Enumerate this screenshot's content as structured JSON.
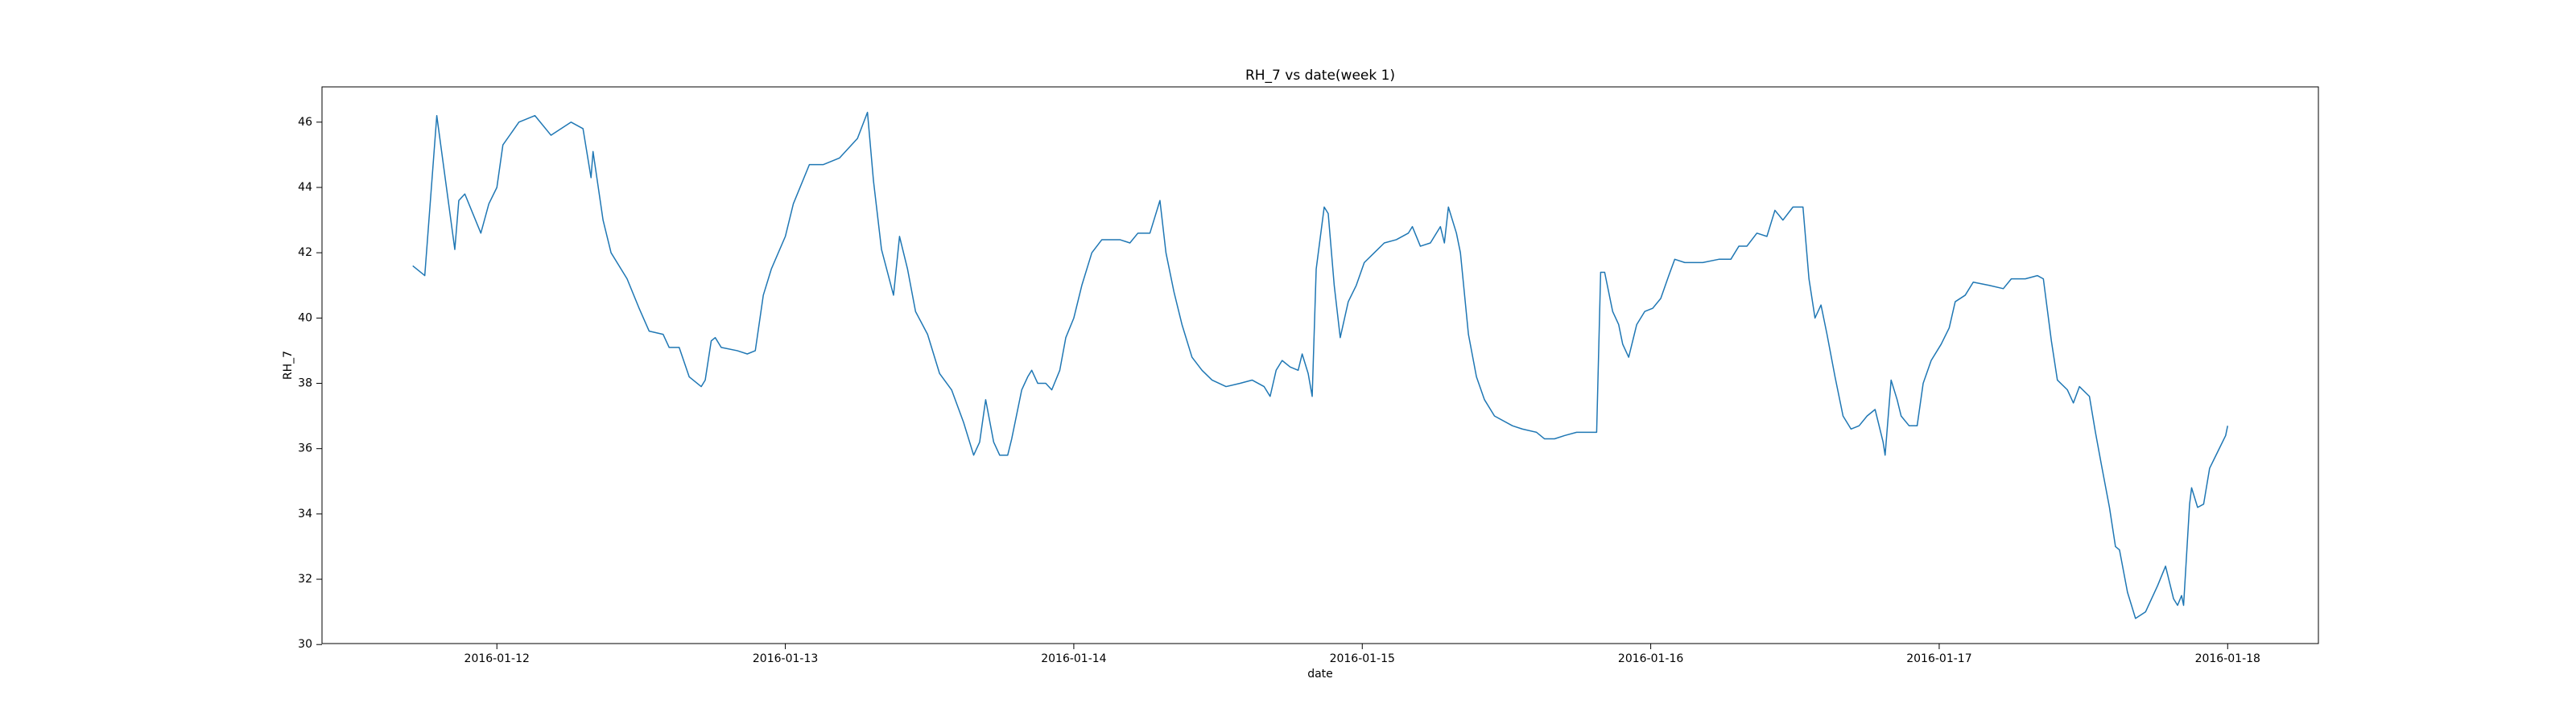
{
  "chart_data": {
    "type": "line",
    "title": "RH_7 vs date(week 1)",
    "x_label": "date",
    "y_label": "RH_7",
    "color": "#1f77b4",
    "grid": false,
    "xlim": [
      "2016-01-11 09:27",
      "2016-01-18 07:33"
    ],
    "xticks": [
      "2016-01-12",
      "2016-01-13",
      "2016-01-14",
      "2016-01-15",
      "2016-01-16",
      "2016-01-17",
      "2016-01-18"
    ],
    "ylim": [
      30.03,
      47.08
    ],
    "yticks": [
      30,
      32,
      34,
      36,
      38,
      40,
      42,
      44,
      46
    ],
    "x": [
      "2016-01-11 17:00",
      "2016-01-11 18:00",
      "2016-01-11 19:00",
      "2016-01-11 20:30",
      "2016-01-11 20:50",
      "2016-01-11 21:20",
      "2016-01-11 22:40",
      "2016-01-11 23:20",
      "2016-01-12 00:00",
      "2016-01-12 00:30",
      "2016-01-12 01:50",
      "2016-01-12 03:10",
      "2016-01-12 04:30",
      "2016-01-12 06:10",
      "2016-01-12 07:10",
      "2016-01-12 07:50",
      "2016-01-12 08:00",
      "2016-01-12 08:50",
      "2016-01-12 09:30",
      "2016-01-12 10:50",
      "2016-01-12 11:50",
      "2016-01-12 12:40",
      "2016-01-12 13:50",
      "2016-01-12 14:20",
      "2016-01-12 15:10",
      "2016-01-12 16:00",
      "2016-01-12 17:00",
      "2016-01-12 17:20",
      "2016-01-12 17:50",
      "2016-01-12 18:10",
      "2016-01-12 18:40",
      "2016-01-12 20:00",
      "2016-01-12 20:50",
      "2016-01-12 21:30",
      "2016-01-12 22:10",
      "2016-01-12 22:50",
      "2016-01-13 00:00",
      "2016-01-13 00:40",
      "2016-01-13 02:00",
      "2016-01-13 03:10",
      "2016-01-13 04:30",
      "2016-01-13 06:00",
      "2016-01-13 06:50",
      "2016-01-13 07:20",
      "2016-01-13 08:00",
      "2016-01-13 09:00",
      "2016-01-13 09:30",
      "2016-01-13 10:10",
      "2016-01-13 10:50",
      "2016-01-13 11:50",
      "2016-01-13 12:50",
      "2016-01-13 13:50",
      "2016-01-13 14:50",
      "2016-01-13 15:40",
      "2016-01-13 16:10",
      "2016-01-13 16:40",
      "2016-01-13 17:20",
      "2016-01-13 17:50",
      "2016-01-13 18:30",
      "2016-01-13 18:50",
      "2016-01-13 19:40",
      "2016-01-13 20:10",
      "2016-01-13 20:30",
      "2016-01-13 21:00",
      "2016-01-13 21:40",
      "2016-01-13 22:10",
      "2016-01-13 22:50",
      "2016-01-13 23:20",
      "2016-01-14 00:00",
      "2016-01-14 00:40",
      "2016-01-14 01:30",
      "2016-01-14 02:20",
      "2016-01-14 03:50",
      "2016-01-14 04:40",
      "2016-01-14 05:20",
      "2016-01-14 06:20",
      "2016-01-14 07:10",
      "2016-01-14 07:40",
      "2016-01-14 08:20",
      "2016-01-14 09:00",
      "2016-01-14 09:50",
      "2016-01-14 10:40",
      "2016-01-14 11:30",
      "2016-01-14 12:40",
      "2016-01-14 13:50",
      "2016-01-14 14:50",
      "2016-01-14 15:50",
      "2016-01-14 16:20",
      "2016-01-14 16:50",
      "2016-01-14 17:20",
      "2016-01-14 18:00",
      "2016-01-14 18:40",
      "2016-01-14 19:00",
      "2016-01-14 19:30",
      "2016-01-14 19:50",
      "2016-01-14 20:10",
      "2016-01-14 20:50",
      "2016-01-14 21:10",
      "2016-01-14 21:40",
      "2016-01-14 22:10",
      "2016-01-14 22:50",
      "2016-01-14 23:30",
      "2016-01-15 00:10",
      "2016-01-15 01:00",
      "2016-01-15 01:50",
      "2016-01-15 02:50",
      "2016-01-15 03:50",
      "2016-01-15 04:10",
      "2016-01-15 04:50",
      "2016-01-15 05:40",
      "2016-01-15 06:30",
      "2016-01-15 06:50",
      "2016-01-15 07:10",
      "2016-01-15 07:50",
      "2016-01-15 08:10",
      "2016-01-15 08:50",
      "2016-01-15 09:30",
      "2016-01-15 10:10",
      "2016-01-15 11:00",
      "2016-01-15 12:30",
      "2016-01-15 13:20",
      "2016-01-15 14:30",
      "2016-01-15 15:10",
      "2016-01-15 16:00",
      "2016-01-15 16:50",
      "2016-01-15 17:50",
      "2016-01-15 19:00",
      "2016-01-15 19:30",
      "2016-01-15 19:50",
      "2016-01-15 20:10",
      "2016-01-15 20:50",
      "2016-01-15 21:20",
      "2016-01-15 21:40",
      "2016-01-15 22:10",
      "2016-01-15 22:50",
      "2016-01-15 23:30",
      "2016-01-16 00:10",
      "2016-01-16 00:50",
      "2016-01-16 01:30",
      "2016-01-16 02:00",
      "2016-01-16 02:50",
      "2016-01-16 04:20",
      "2016-01-16 05:40",
      "2016-01-16 06:40",
      "2016-01-16 07:20",
      "2016-01-16 08:00",
      "2016-01-16 08:50",
      "2016-01-16 09:40",
      "2016-01-16 10:20",
      "2016-01-16 11:00",
      "2016-01-16 11:50",
      "2016-01-16 12:40",
      "2016-01-16 13:10",
      "2016-01-16 13:40",
      "2016-01-16 14:10",
      "2016-01-16 14:40",
      "2016-01-16 15:20",
      "2016-01-16 16:00",
      "2016-01-16 16:40",
      "2016-01-16 17:20",
      "2016-01-16 18:00",
      "2016-01-16 18:40",
      "2016-01-16 19:20",
      "2016-01-16 19:30",
      "2016-01-16 20:00",
      "2016-01-16 20:30",
      "2016-01-16 20:50",
      "2016-01-16 21:30",
      "2016-01-16 22:10",
      "2016-01-16 22:40",
      "2016-01-16 23:20",
      "2016-01-17 00:10",
      "2016-01-17 00:50",
      "2016-01-17 01:20",
      "2016-01-17 02:10",
      "2016-01-17 02:50",
      "2016-01-17 04:10",
      "2016-01-17 05:20",
      "2016-01-17 06:00",
      "2016-01-17 07:10",
      "2016-01-17 08:10",
      "2016-01-17 08:40",
      "2016-01-17 09:20",
      "2016-01-17 09:50",
      "2016-01-17 10:40",
      "2016-01-17 11:10",
      "2016-01-17 11:40",
      "2016-01-17 12:30",
      "2016-01-17 13:00",
      "2016-01-17 13:30",
      "2016-01-17 14:10",
      "2016-01-17 14:40",
      "2016-01-17 15:00",
      "2016-01-17 15:40",
      "2016-01-17 16:20",
      "2016-01-17 17:10",
      "2016-01-17 17:40",
      "2016-01-17 18:10",
      "2016-01-17 18:50",
      "2016-01-17 19:30",
      "2016-01-17 19:50",
      "2016-01-17 20:10",
      "2016-01-17 20:20",
      "2016-01-17 20:50",
      "2016-01-17 21:00",
      "2016-01-17 21:30",
      "2016-01-17 22:00",
      "2016-01-17 22:30",
      "2016-01-17 23:10",
      "2016-01-17 23:50",
      "2016-01-18 00:00"
    ],
    "values": [
      41.6,
      41.3,
      46.2,
      42.1,
      43.6,
      43.8,
      42.6,
      43.5,
      44.0,
      45.3,
      46.0,
      46.2,
      45.6,
      46.0,
      45.8,
      44.3,
      45.1,
      43.0,
      42.0,
      41.2,
      40.3,
      39.6,
      39.5,
      39.1,
      39.1,
      38.2,
      37.9,
      38.1,
      39.3,
      39.4,
      39.1,
      39.0,
      38.9,
      39.0,
      40.7,
      41.5,
      42.5,
      43.5,
      44.7,
      44.7,
      44.9,
      45.5,
      46.3,
      44.2,
      42.1,
      40.7,
      42.5,
      41.5,
      40.2,
      39.5,
      38.3,
      37.8,
      36.8,
      35.8,
      36.2,
      37.5,
      36.2,
      35.8,
      35.8,
      36.3,
      37.8,
      38.2,
      38.4,
      38.0,
      38.0,
      37.8,
      38.4,
      39.4,
      40.0,
      41.0,
      42.0,
      42.4,
      42.4,
      42.3,
      42.6,
      42.6,
      43.6,
      42.0,
      40.8,
      39.8,
      38.8,
      38.4,
      38.1,
      37.9,
      38.0,
      38.1,
      37.9,
      37.6,
      38.4,
      38.7,
      38.5,
      38.4,
      38.9,
      38.3,
      37.6,
      41.5,
      43.4,
      43.2,
      41.0,
      39.4,
      40.5,
      41.0,
      41.7,
      42.0,
      42.3,
      42.4,
      42.6,
      42.8,
      42.2,
      42.3,
      42.8,
      42.3,
      43.4,
      42.6,
      42.0,
      39.5,
      38.2,
      37.5,
      37.0,
      36.7,
      36.6,
      36.5,
      36.3,
      36.3,
      36.4,
      36.5,
      36.5,
      36.5,
      41.4,
      41.4,
      40.2,
      39.8,
      39.2,
      38.8,
      39.8,
      40.2,
      40.3,
      40.6,
      41.3,
      41.8,
      41.7,
      41.7,
      41.8,
      41.8,
      42.2,
      42.2,
      42.6,
      42.5,
      43.3,
      43.0,
      43.4,
      43.4,
      41.2,
      40.0,
      40.4,
      39.5,
      38.2,
      37.0,
      36.6,
      36.7,
      37.0,
      37.2,
      36.2,
      35.8,
      38.1,
      37.5,
      37.0,
      36.7,
      36.7,
      38.0,
      38.7,
      39.2,
      39.7,
      40.5,
      40.7,
      41.1,
      41.0,
      40.9,
      41.2,
      41.2,
      41.3,
      41.2,
      39.3,
      38.1,
      37.8,
      37.4,
      37.9,
      37.6,
      36.5,
      35.5,
      34.2,
      33.0,
      32.9,
      31.6,
      30.8,
      31.0,
      31.4,
      31.8,
      32.4,
      31.4,
      31.2,
      31.5,
      31.2,
      34.3,
      34.8,
      34.2,
      34.3,
      35.4,
      35.9,
      36.4,
      36.7
    ]
  }
}
